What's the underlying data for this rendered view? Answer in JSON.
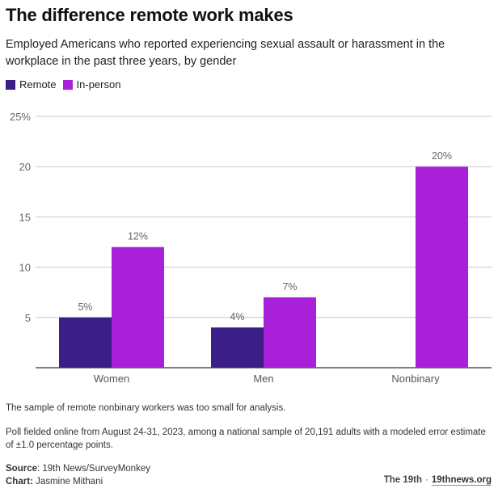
{
  "header": {
    "title": "The difference remote work makes",
    "subtitle": "Employed Americans who reported experiencing sexual assault or harassment in the workplace in the past three years, by gender"
  },
  "legend": [
    {
      "label": "Remote",
      "color": "#3a1f86"
    },
    {
      "label": "In-person",
      "color": "#a820d8"
    }
  ],
  "chart_data": {
    "type": "bar",
    "title": "The difference remote work makes",
    "xlabel": "",
    "ylabel": "",
    "categories": [
      "Women",
      "Men",
      "Nonbinary"
    ],
    "series": [
      {
        "name": "Remote",
        "color": "#3a1f86",
        "values": [
          5,
          4,
          null
        ],
        "labels": [
          "5%",
          "4%",
          ""
        ]
      },
      {
        "name": "In-person",
        "color": "#a820d8",
        "values": [
          12,
          7,
          20
        ],
        "labels": [
          "12%",
          "7%",
          "20%"
        ]
      }
    ],
    "ylim": [
      0,
      25
    ],
    "yticks": [
      5,
      10,
      15,
      20,
      25
    ],
    "ytick_labels": [
      "5",
      "10",
      "15",
      "20",
      "25%"
    ],
    "grid": true,
    "legend_position": "top-left"
  },
  "notes": {
    "note1": "The sample of remote nonbinary workers was too small for analysis.",
    "note2": "Poll fielded online from August 24-31, 2023, among a national sample of 20,191 adults with a modeled error estimate of ±1.0 percentage points."
  },
  "credits": {
    "source_label": "Source",
    "source_value": ": 19th News/SurveyMonkey",
    "chart_label": "Chart:",
    "chart_value": " Jasmine Mithani"
  },
  "brand": {
    "name": "The 19th",
    "separator": "·",
    "link": "19thnews.org"
  }
}
